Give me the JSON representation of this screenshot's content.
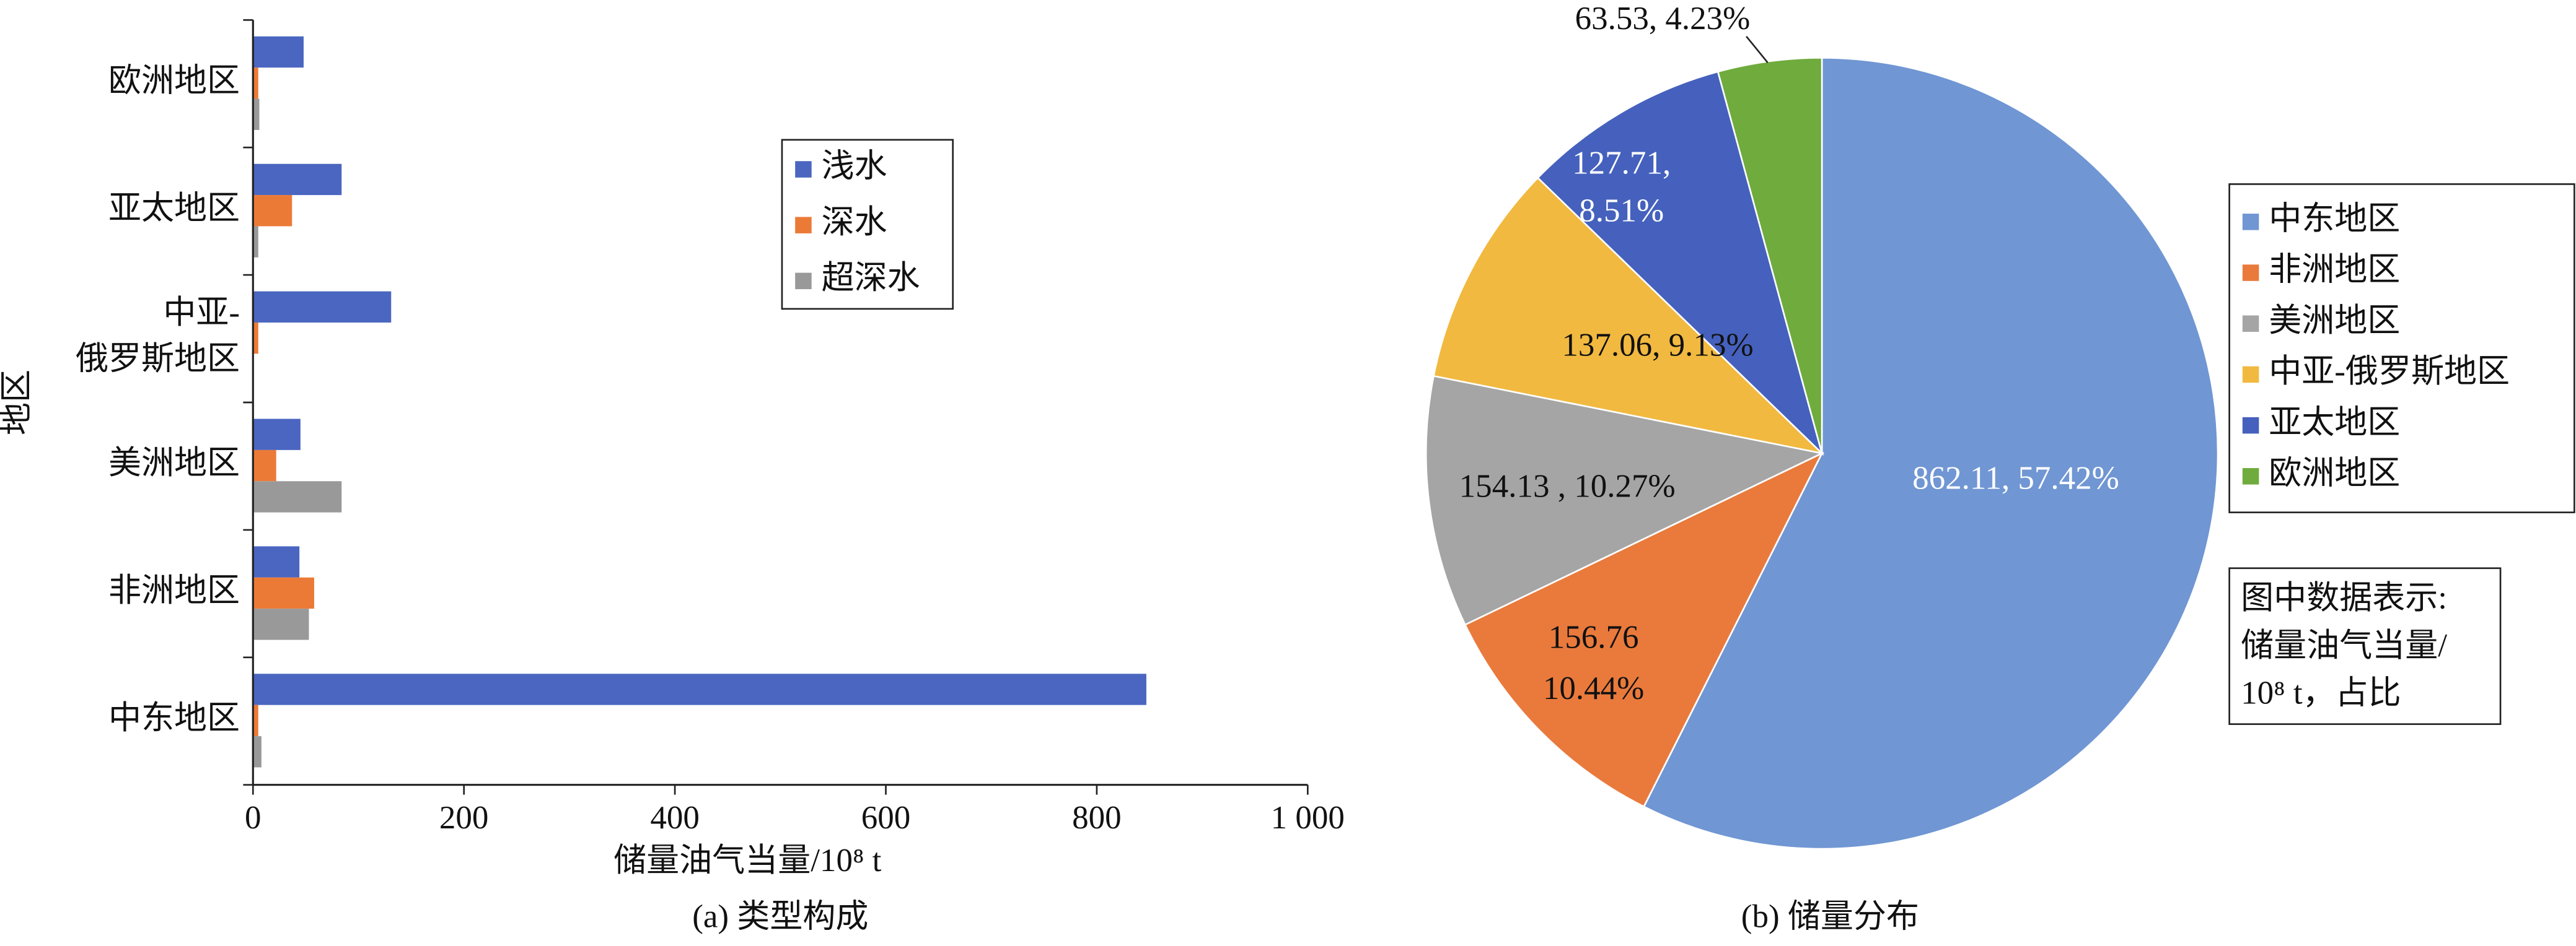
{
  "chart_data": [
    {
      "type": "hbar",
      "caption": "(a) 类型构成",
      "x_label": "储量油气当量/10⁸ t",
      "y_label": "地区",
      "categories": [
        "中东地区",
        "非洲地区",
        "美洲地区",
        [
          "中亚-",
          "俄罗斯地区"
        ],
        "亚太地区",
        "欧洲地区"
      ],
      "series": [
        {
          "name": "浅水",
          "color": "#4a66c0",
          "values": [
            847,
            44,
            45,
            131,
            84,
            48
          ]
        },
        {
          "name": "深水",
          "color": "#ec7a37",
          "values": [
            5,
            58,
            22,
            5,
            37,
            5
          ]
        },
        {
          "name": "超深水",
          "color": "#999999",
          "values": [
            8,
            53,
            84,
            0,
            5,
            6
          ]
        }
      ],
      "xlim": [
        0,
        1000
      ],
      "xticks": [
        0,
        200,
        400,
        600,
        800,
        {
          "value": 1000,
          "label": "1 000"
        }
      ]
    },
    {
      "type": "pie",
      "caption": "(b) 储量分布",
      "categories": [
        "中东地区",
        "非洲地区",
        "美洲地区",
        "中亚-俄罗斯地区",
        "亚太地区",
        "欧洲地区"
      ],
      "values": [
        862.11,
        156.76,
        154.13,
        137.06,
        127.71,
        63.53
      ],
      "value_labels": [
        "862.11, 57.42%",
        [
          "156.76",
          "10.44%"
        ],
        "154.13 , 10.27%",
        "137.06, 9.13%",
        [
          "127.71,",
          "8.51%"
        ],
        "63.53, 4.23%"
      ],
      "colors": [
        "#7096d3",
        "#e97a3c",
        "#a5a5a5",
        "#f1b940",
        "#4561bd",
        "#6fab3d"
      ],
      "note": [
        "图中数据表示:",
        "储量油气当量/",
        "10⁸ t，占比"
      ]
    }
  ]
}
